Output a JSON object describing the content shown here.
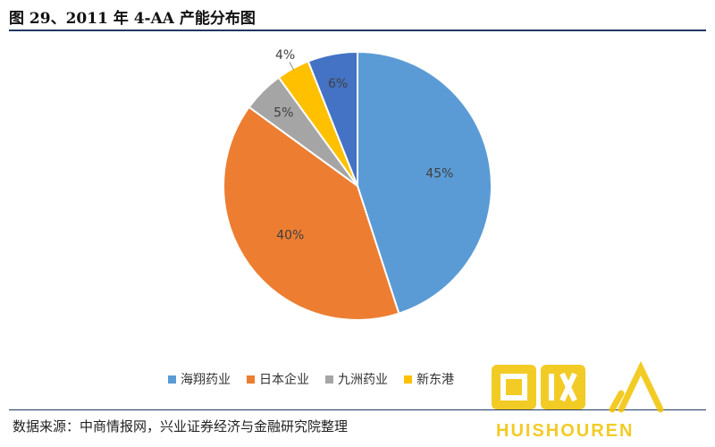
{
  "header": {
    "title": "图 29、2011 年 4-AA 产能分布图"
  },
  "footer": {
    "source": "数据来源：中商情报网，兴业证券经济与金融研究院整理"
  },
  "chart_data": {
    "type": "pie",
    "title": "",
    "slices": [
      {
        "name": "海翔药业",
        "value": 45,
        "label": "45%",
        "color": "#5b9bd5"
      },
      {
        "name": "日本企业",
        "value": 40,
        "label": "40%",
        "color": "#ed7d31"
      },
      {
        "name": "九洲药业",
        "value": 5,
        "label": "5%",
        "color": "#a5a5a5"
      },
      {
        "name": "新东港",
        "value": 4,
        "label": "4%",
        "color": "#ffc000"
      },
      {
        "name": "",
        "value": 6,
        "label": "6%",
        "color": "#4472c4"
      }
    ],
    "legend_position": "bottom"
  },
  "legend": {
    "items": [
      "海翔药业",
      "日本企业",
      "九洲药业",
      "新东港"
    ],
    "visible_last": "新东港"
  },
  "watermark": {
    "text": "HUISHOUREN"
  }
}
